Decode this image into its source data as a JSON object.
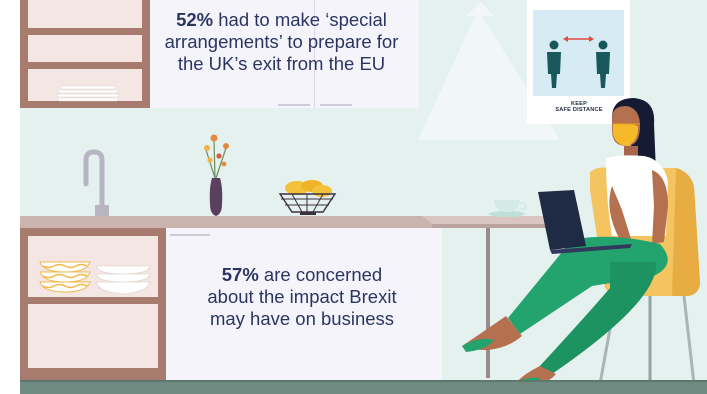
{
  "stats": [
    {
      "percent": "52%",
      "text_line1": " had to make ‘special",
      "text_line2": "arrangements’ to prepare for",
      "text_line3": "the UK’s exit from the EU"
    },
    {
      "percent": "57%",
      "text_line1": " are concerned",
      "text_line2": "about the impact Brexit",
      "text_line3": "may have on business"
    }
  ],
  "poster": {
    "line1": "KEEP",
    "line2": "SAFE DISTANCE"
  },
  "colors": {
    "wall": "#e4f1ef",
    "cabinet_wood": "#a77b6d",
    "shelf_inner": "#f4e6e2",
    "cabinet_panel": "#f6f4fb",
    "countertop": "#cbb3ae",
    "floor": "#6f8a80",
    "stat_text": "#2a3562",
    "sleeve_green": "#23a36d",
    "chair": "#f3c45f",
    "mask": "#f5b92a",
    "poster_blue": "#d6ebf4",
    "poster_figure": "#18585a",
    "arrow_red": "#e44a3f"
  }
}
